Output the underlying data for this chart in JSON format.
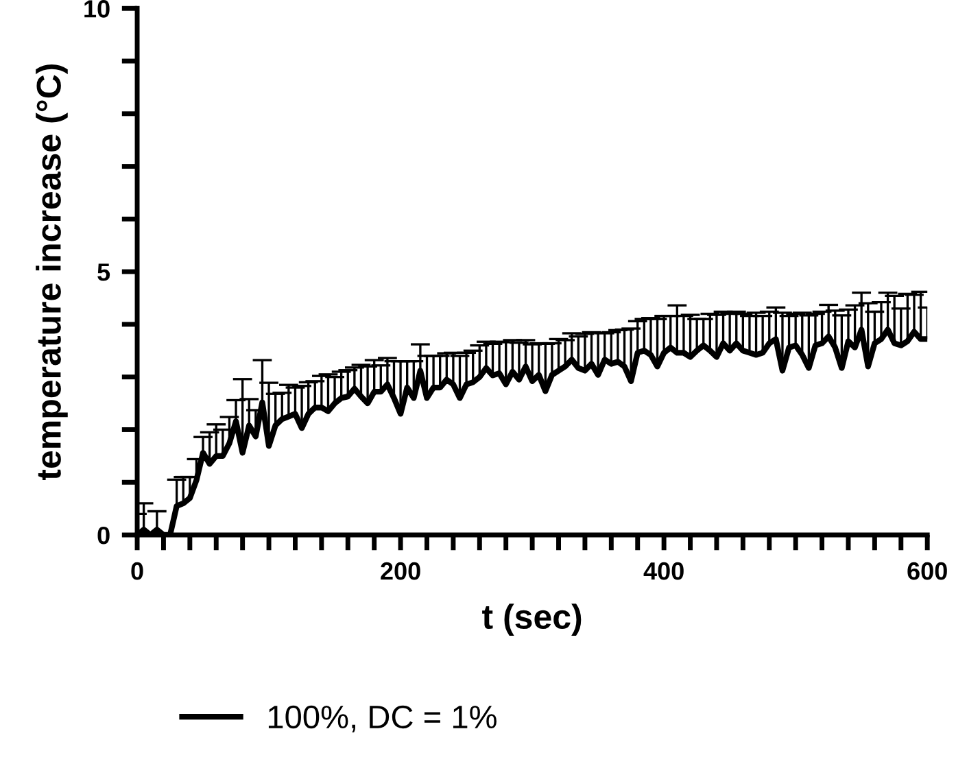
{
  "chart_data": {
    "type": "line",
    "xlabel": "t (sec)",
    "ylabel": "temperature increase (°C)",
    "x": [
      0,
      5,
      10,
      15,
      20,
      25,
      30,
      35,
      40,
      45,
      50,
      55,
      60,
      65,
      70,
      75,
      80,
      85,
      90,
      95,
      100,
      105,
      110,
      115,
      120,
      125,
      130,
      135,
      140,
      145,
      150,
      155,
      160,
      165,
      170,
      175,
      180,
      185,
      190,
      195,
      200,
      205,
      210,
      215,
      220,
      225,
      230,
      235,
      240,
      245,
      250,
      255,
      260,
      265,
      270,
      275,
      280,
      285,
      290,
      295,
      300,
      305,
      310,
      315,
      320,
      325,
      330,
      335,
      340,
      345,
      350,
      355,
      360,
      365,
      370,
      375,
      380,
      385,
      390,
      395,
      400,
      405,
      410,
      415,
      420,
      425,
      430,
      435,
      440,
      445,
      450,
      455,
      460,
      465,
      470,
      475,
      480,
      485,
      490,
      495,
      500,
      505,
      510,
      515,
      520,
      525,
      530,
      535,
      540,
      545,
      550,
      555,
      560,
      565,
      570,
      575,
      580,
      585,
      590,
      595,
      600
    ],
    "series": [
      {
        "name": "100%, DC = 1%",
        "color": "#000000",
        "values": [
          0,
          0.1,
          0,
          0.1,
          0,
          0,
          0.55,
          0.6,
          0.7,
          1.04,
          1.56,
          1.35,
          1.5,
          1.5,
          1.74,
          2.16,
          1.56,
          2.08,
          1.87,
          2.52,
          1.69,
          2.08,
          2.2,
          2.25,
          2.3,
          2.03,
          2.3,
          2.42,
          2.42,
          2.35,
          2.5,
          2.6,
          2.63,
          2.78,
          2.63,
          2.5,
          2.72,
          2.72,
          2.86,
          2.6,
          2.3,
          2.8,
          2.6,
          3.12,
          2.6,
          2.8,
          2.8,
          2.95,
          2.86,
          2.6,
          2.86,
          2.9,
          3.0,
          3.17,
          3.03,
          3.07,
          2.86,
          3.1,
          2.95,
          3.2,
          2.92,
          3.04,
          2.73,
          3.04,
          3.12,
          3.2,
          3.33,
          3.17,
          3.12,
          3.25,
          3.04,
          3.33,
          3.25,
          3.29,
          3.2,
          2.92,
          3.46,
          3.5,
          3.42,
          3.2,
          3.46,
          3.56,
          3.46,
          3.46,
          3.38,
          3.5,
          3.6,
          3.5,
          3.38,
          3.64,
          3.5,
          3.64,
          3.5,
          3.46,
          3.42,
          3.46,
          3.64,
          3.72,
          3.12,
          3.56,
          3.6,
          3.42,
          3.17,
          3.6,
          3.64,
          3.77,
          3.56,
          3.17,
          3.68,
          3.56,
          3.9,
          3.2,
          3.64,
          3.72,
          3.9,
          3.64,
          3.6,
          3.68,
          3.86,
          3.72,
          3.72
        ],
        "errors": [
          [
            0,
            0.4
          ],
          [
            0.1,
            0.6
          ],
          null,
          [
            0.1,
            0.45
          ],
          null,
          null,
          [
            0.55,
            1.05
          ],
          [
            0.6,
            1.1
          ],
          [
            0.7,
            1.1
          ],
          [
            1.04,
            1.44
          ],
          [
            1.56,
            1.86
          ],
          [
            1.35,
            1.95
          ],
          [
            1.5,
            2.1
          ],
          [
            1.5,
            2.0
          ],
          [
            1.74,
            2.24
          ],
          [
            2.16,
            2.56
          ],
          [
            1.56,
            2.96
          ],
          [
            2.08,
            2.58
          ],
          [
            1.87,
            2.37
          ],
          [
            2.52,
            3.32
          ],
          [
            1.69,
            2.89
          ],
          [
            2.08,
            2.68
          ],
          [
            2.2,
            2.7
          ],
          [
            2.25,
            2.85
          ],
          [
            2.3,
            2.8
          ],
          [
            2.03,
            2.83
          ],
          [
            2.3,
            2.9
          ],
          [
            2.42,
            2.92
          ],
          [
            2.42,
            3.02
          ],
          [
            2.35,
            3.05
          ],
          [
            2.5,
            3.0
          ],
          [
            2.6,
            3.1
          ],
          [
            2.63,
            3.13
          ],
          [
            2.78,
            3.18
          ],
          [
            2.63,
            3.23
          ],
          [
            2.5,
            3.2
          ],
          [
            2.72,
            3.32
          ],
          [
            2.72,
            3.22
          ],
          [
            2.86,
            3.36
          ],
          [
            2.6,
            3.3
          ],
          [
            2.3,
            3.3
          ],
          [
            2.8,
            3.3
          ],
          [
            2.6,
            3.3
          ],
          [
            3.12,
            3.62
          ],
          [
            2.6,
            3.4
          ],
          [
            2.8,
            3.4
          ],
          [
            2.8,
            3.4
          ],
          [
            2.95,
            3.45
          ],
          [
            2.86,
            3.46
          ],
          [
            2.6,
            3.4
          ],
          [
            2.86,
            3.46
          ],
          [
            2.9,
            3.5
          ],
          [
            3.0,
            3.6
          ],
          [
            3.17,
            3.67
          ],
          [
            3.03,
            3.63
          ],
          [
            3.07,
            3.67
          ],
          [
            2.86,
            3.66
          ],
          [
            3.1,
            3.7
          ],
          [
            2.95,
            3.65
          ],
          [
            3.2,
            3.7
          ],
          [
            2.92,
            3.62
          ],
          [
            3.04,
            3.64
          ],
          [
            2.73,
            3.63
          ],
          [
            3.04,
            3.64
          ],
          [
            3.12,
            3.72
          ],
          [
            3.2,
            3.7
          ],
          [
            3.33,
            3.83
          ],
          [
            3.17,
            3.77
          ],
          [
            3.12,
            3.82
          ],
          [
            3.25,
            3.85
          ],
          [
            3.04,
            3.84
          ],
          [
            3.33,
            3.83
          ],
          [
            3.25,
            3.85
          ],
          [
            3.29,
            3.89
          ],
          [
            3.2,
            3.9
          ],
          [
            2.92,
            3.92
          ],
          [
            3.46,
            4.06
          ],
          [
            3.5,
            4.1
          ],
          [
            3.42,
            4.12
          ],
          [
            3.2,
            4.1
          ],
          [
            3.46,
            4.16
          ],
          [
            3.56,
            4.16
          ],
          [
            3.46,
            4.36
          ],
          [
            3.46,
            4.16
          ],
          [
            3.38,
            4.18
          ],
          [
            3.5,
            4.1
          ],
          [
            3.6,
            4.1
          ],
          [
            3.5,
            4.2
          ],
          [
            3.38,
            4.18
          ],
          [
            3.64,
            4.24
          ],
          [
            3.5,
            4.2
          ],
          [
            3.64,
            4.24
          ],
          [
            3.5,
            4.2
          ],
          [
            3.46,
            4.16
          ],
          [
            3.42,
            4.22
          ],
          [
            3.46,
            4.16
          ],
          [
            3.64,
            4.24
          ],
          [
            3.72,
            4.32
          ],
          [
            3.12,
            4.22
          ],
          [
            3.56,
            4.16
          ],
          [
            3.6,
            4.2
          ],
          [
            3.42,
            4.22
          ],
          [
            3.17,
            4.17
          ],
          [
            3.6,
            4.2
          ],
          [
            3.64,
            4.24
          ],
          [
            3.77,
            4.37
          ],
          [
            3.56,
            4.26
          ],
          [
            3.17,
            4.17
          ],
          [
            3.68,
            4.28
          ],
          [
            3.56,
            4.36
          ],
          [
            3.9,
            4.6
          ],
          [
            3.2,
            4.4
          ],
          [
            3.64,
            4.24
          ],
          [
            3.72,
            4.42
          ],
          [
            3.9,
            4.6
          ],
          [
            3.64,
            4.54
          ],
          [
            3.6,
            4.3
          ],
          [
            3.68,
            4.58
          ],
          [
            3.86,
            4.56
          ],
          [
            3.72,
            4.62
          ],
          [
            3.72,
            4.32
          ]
        ]
      }
    ],
    "xlim": [
      0,
      600
    ],
    "ylim": [
      0,
      10
    ],
    "xticks": [
      0,
      {
        "value": 20,
        "label": null
      },
      {
        "value": 40,
        "label": null
      },
      {
        "value": 60,
        "label": null
      },
      {
        "value": 80,
        "label": null
      },
      {
        "value": 100,
        "label": null
      },
      {
        "value": 120,
        "label": null
      },
      {
        "value": 140,
        "label": null
      },
      {
        "value": 160,
        "label": null
      },
      {
        "value": 180,
        "label": null
      },
      200,
      {
        "value": 220,
        "label": null
      },
      {
        "value": 240,
        "label": null
      },
      {
        "value": 260,
        "label": null
      },
      {
        "value": 280,
        "label": null
      },
      {
        "value": 300,
        "label": null
      },
      {
        "value": 320,
        "label": null
      },
      {
        "value": 340,
        "label": null
      },
      {
        "value": 360,
        "label": null
      },
      {
        "value": 380,
        "label": null
      },
      400,
      {
        "value": 420,
        "label": null
      },
      {
        "value": 440,
        "label": null
      },
      {
        "value": 460,
        "label": null
      },
      {
        "value": 480,
        "label": null
      },
      {
        "value": 500,
        "label": null
      },
      {
        "value": 520,
        "label": null
      },
      {
        "value": 540,
        "label": null
      },
      {
        "value": 560,
        "label": null
      },
      {
        "value": 580,
        "label": null
      },
      600
    ],
    "yticks": [
      0,
      {
        "value": 1,
        "label": null
      },
      {
        "value": 2,
        "label": null
      },
      {
        "value": 3,
        "label": null
      },
      {
        "value": 4,
        "label": null
      },
      5,
      {
        "value": 6,
        "label": null
      },
      {
        "value": 7,
        "label": null
      },
      {
        "value": 8,
        "label": null
      },
      {
        "value": 9,
        "label": null
      },
      10
    ],
    "grid": false,
    "legend": "bottom",
    "marker": "none",
    "line_style": "solid"
  }
}
